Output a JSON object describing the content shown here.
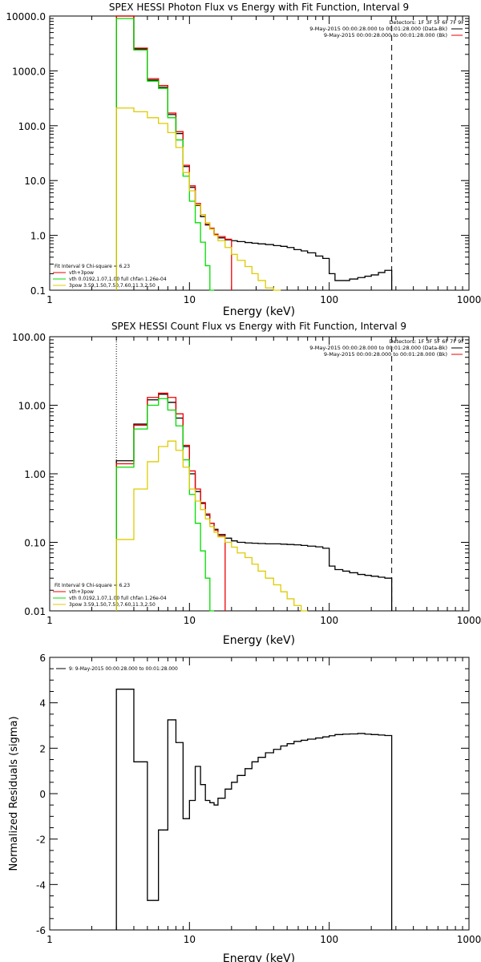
{
  "colors": {
    "black": "#000000",
    "red": "#ee0000",
    "green": "#00dd00",
    "yellow": "#ddcc00",
    "orange": "#ff9900"
  },
  "panels": [
    {
      "title": "SPEX HESSI Photon Flux vs Energy with Fit Function, Interval 9",
      "xlabel": "Energy (keV)",
      "ylabel": "",
      "xticks": [
        "1",
        "10",
        "100",
        "1000"
      ],
      "yticks": [
        "0.1",
        "1.0",
        "10.0",
        "100.0",
        "1000.0",
        "10000.0"
      ],
      "legend_tr": [
        "Detectors: 1F 3F 5F 6F 7F 9F",
        "9-May-2015 00:00:28.000 to 00:01:28.000 (Data-Bk)",
        "9-May-2015 00:00:28.000 to 00:01:28.000 (Bk)"
      ],
      "legend_bl": [
        "Fit Interval 9   Chi-square = 6.23",
        "vth+3pow",
        "vth 0.0192,1.07,1.00  full chfan 1.26e-04",
        "3pow 3.59,1.50,7.50,7.60,11.3,2.50"
      ]
    },
    {
      "title": "SPEX HESSI Count Flux vs Energy with Fit Function, Interval 9",
      "xlabel": "Energy (keV)",
      "ylabel": "",
      "xticks": [
        "1",
        "10",
        "100",
        "1000"
      ],
      "yticks": [
        "0.01",
        "0.10",
        "1.00",
        "10.00",
        "100.00"
      ],
      "legend_tr": [
        "Detectors: 1F 3F 5F 6F 7F 9F",
        "9-May-2015 00:00:28.000 to 00:01:28.000 (Data-Bk)",
        "9-May-2015 00:00:28.000 to 00:01:28.000 (Bk)"
      ],
      "legend_bl": [
        "Fit Interval 9   Chi-square = 6.23",
        "vth+3pow",
        "vth 0.0192,1.07,1.00  full chfan 1.26e-04",
        "3pow 3.59,1.50,7.50,7.60,11.3,2.50"
      ]
    },
    {
      "title": "",
      "xlabel": "Energy (keV)",
      "ylabel": "Normalized Residuals (sigma)",
      "xticks": [
        "1",
        "10",
        "100",
        "1000"
      ],
      "yticks": [
        "-6",
        "-4",
        "-2",
        "0",
        "2",
        "4",
        "6"
      ],
      "legend_tl": [
        "9:  9-May-2015 00:00:28.000 to 00:01:28.000"
      ]
    }
  ],
  "chart_data": [
    {
      "type": "line",
      "title": "SPEX HESSI Photon Flux vs Energy with Fit Function, Interval 9",
      "xlabel": "Energy (keV)",
      "xscale": "log",
      "yscale": "log",
      "xlim": [
        1,
        1000
      ],
      "ylim": [
        0.1,
        10000
      ],
      "bin_edges": [
        3,
        4,
        5,
        6,
        7,
        8,
        9,
        10,
        11,
        12,
        13,
        14,
        15,
        16,
        18,
        20,
        22,
        25,
        28,
        31,
        35,
        40,
        45,
        50,
        56,
        63,
        70,
        80,
        90,
        100,
        110,
        125,
        140,
        160,
        180,
        200,
        225,
        250,
        280
      ],
      "series": [
        {
          "name": "Data-Bk",
          "color": "black",
          "values": [
            10000,
            2500,
            680,
            500,
            160,
            72,
            18,
            7.5,
            3.5,
            2.2,
            1.55,
            1.3,
            1.05,
            0.9,
            0.83,
            0.8,
            0.77,
            0.74,
            0.72,
            0.7,
            0.68,
            0.65,
            0.63,
            0.6,
            0.55,
            0.52,
            0.48,
            0.42,
            0.38,
            0.2,
            0.15,
            0.15,
            0.16,
            0.17,
            0.18,
            0.19,
            0.21,
            0.23
          ]
        },
        {
          "name": "vth+3pow",
          "color": "red",
          "values": [
            10000,
            2600,
            720,
            540,
            170,
            78,
            19,
            8,
            3.8,
            2.4,
            1.6,
            1.35,
            1.05,
            0.95,
            0.85
          ]
        },
        {
          "name": "vth",
          "color": "green",
          "values": [
            9000,
            2400,
            650,
            480,
            140,
            55,
            12,
            4.2,
            1.7,
            0.75,
            0.28,
            0.1
          ]
        },
        {
          "name": "3pow",
          "color": "yellow",
          "values": [
            210,
            180,
            140,
            110,
            75,
            40,
            14,
            6.5,
            3.6,
            2.4,
            1.7,
            1.3,
            1.0,
            0.8,
            0.6,
            0.45,
            0.35,
            0.27,
            0.2,
            0.15,
            0.11,
            0.1
          ]
        }
      ],
      "markers": [
        {
          "x": 3,
          "style": "dotted",
          "color": "orange"
        },
        {
          "x": 280,
          "style": "dashed",
          "color": "black"
        }
      ]
    },
    {
      "type": "line",
      "title": "SPEX HESSI Count Flux vs Energy with Fit Function, Interval 9",
      "xlabel": "Energy (keV)",
      "xscale": "log",
      "yscale": "log",
      "xlim": [
        1,
        1000
      ],
      "ylim": [
        0.01,
        100
      ],
      "bin_edges": [
        3,
        4,
        5,
        6,
        7,
        8,
        9,
        10,
        11,
        12,
        13,
        14,
        15,
        16,
        18,
        20,
        22,
        25,
        28,
        31,
        35,
        40,
        45,
        50,
        56,
        63,
        70,
        80,
        90,
        100,
        110,
        125,
        140,
        160,
        180,
        200,
        225,
        250,
        280
      ],
      "series": [
        {
          "name": "Data-Bk",
          "color": "black",
          "values": [
            1.55,
            5.3,
            12,
            14.5,
            11,
            6.5,
            2.5,
            1.0,
            0.55,
            0.37,
            0.25,
            0.19,
            0.155,
            0.13,
            0.115,
            0.105,
            0.1,
            0.098,
            0.097,
            0.096,
            0.095,
            0.095,
            0.094,
            0.093,
            0.092,
            0.09,
            0.088,
            0.086,
            0.082,
            0.045,
            0.04,
            0.038,
            0.036,
            0.034,
            0.033,
            0.032,
            0.031,
            0.03
          ]
        },
        {
          "name": "vth+3pow",
          "color": "red",
          "values": [
            1.4,
            5.1,
            13,
            15,
            13,
            7.5,
            2.6,
            1.1,
            0.6,
            0.38,
            0.26,
            0.19,
            0.15,
            0.125
          ]
        },
        {
          "name": "vth",
          "color": "green",
          "values": [
            1.25,
            4.5,
            10,
            12.5,
            8.5,
            5.0,
            1.6,
            0.5,
            0.19,
            0.075,
            0.03,
            0.01
          ]
        },
        {
          "name": "3pow",
          "color": "yellow",
          "values": [
            0.11,
            0.6,
            1.5,
            2.5,
            3.0,
            2.2,
            1.25,
            0.6,
            0.4,
            0.3,
            0.22,
            0.17,
            0.14,
            0.12,
            0.1,
            0.085,
            0.07,
            0.06,
            0.048,
            0.038,
            0.03,
            0.024,
            0.019,
            0.015,
            0.012,
            0.01
          ]
        }
      ],
      "markers": [
        {
          "x": 3,
          "style": "dotted",
          "color": "black"
        },
        {
          "x": 280,
          "style": "dashed",
          "color": "black"
        }
      ]
    },
    {
      "type": "line",
      "title": "",
      "xlabel": "Energy (keV)",
      "ylabel": "Normalized Residuals (sigma)",
      "xscale": "log",
      "yscale": "linear",
      "xlim": [
        1,
        1000
      ],
      "ylim": [
        -6,
        6
      ],
      "bin_edges": [
        3,
        4,
        5,
        6,
        7,
        8,
        9,
        10,
        11,
        12,
        13,
        14,
        15,
        16,
        18,
        20,
        22,
        25,
        28,
        31,
        35,
        40,
        45,
        50,
        56,
        63,
        70,
        80,
        90,
        100,
        110,
        125,
        140,
        160,
        180,
        200,
        225,
        250,
        280
      ],
      "series": [
        {
          "name": "9:  9-May-2015 00:00:28.000 to 00:01:28.000",
          "color": "black",
          "values": [
            4.6,
            1.4,
            -4.7,
            -1.6,
            3.25,
            2.25,
            -1.1,
            -0.3,
            1.2,
            0.4,
            -0.3,
            -0.4,
            -0.5,
            -0.2,
            0.2,
            0.5,
            0.8,
            1.1,
            1.4,
            1.6,
            1.8,
            1.95,
            2.1,
            2.2,
            2.3,
            2.35,
            2.4,
            2.45,
            2.5,
            2.55,
            2.6,
            2.62,
            2.63,
            2.65,
            2.62,
            2.6,
            2.58,
            2.56
          ]
        }
      ]
    }
  ]
}
